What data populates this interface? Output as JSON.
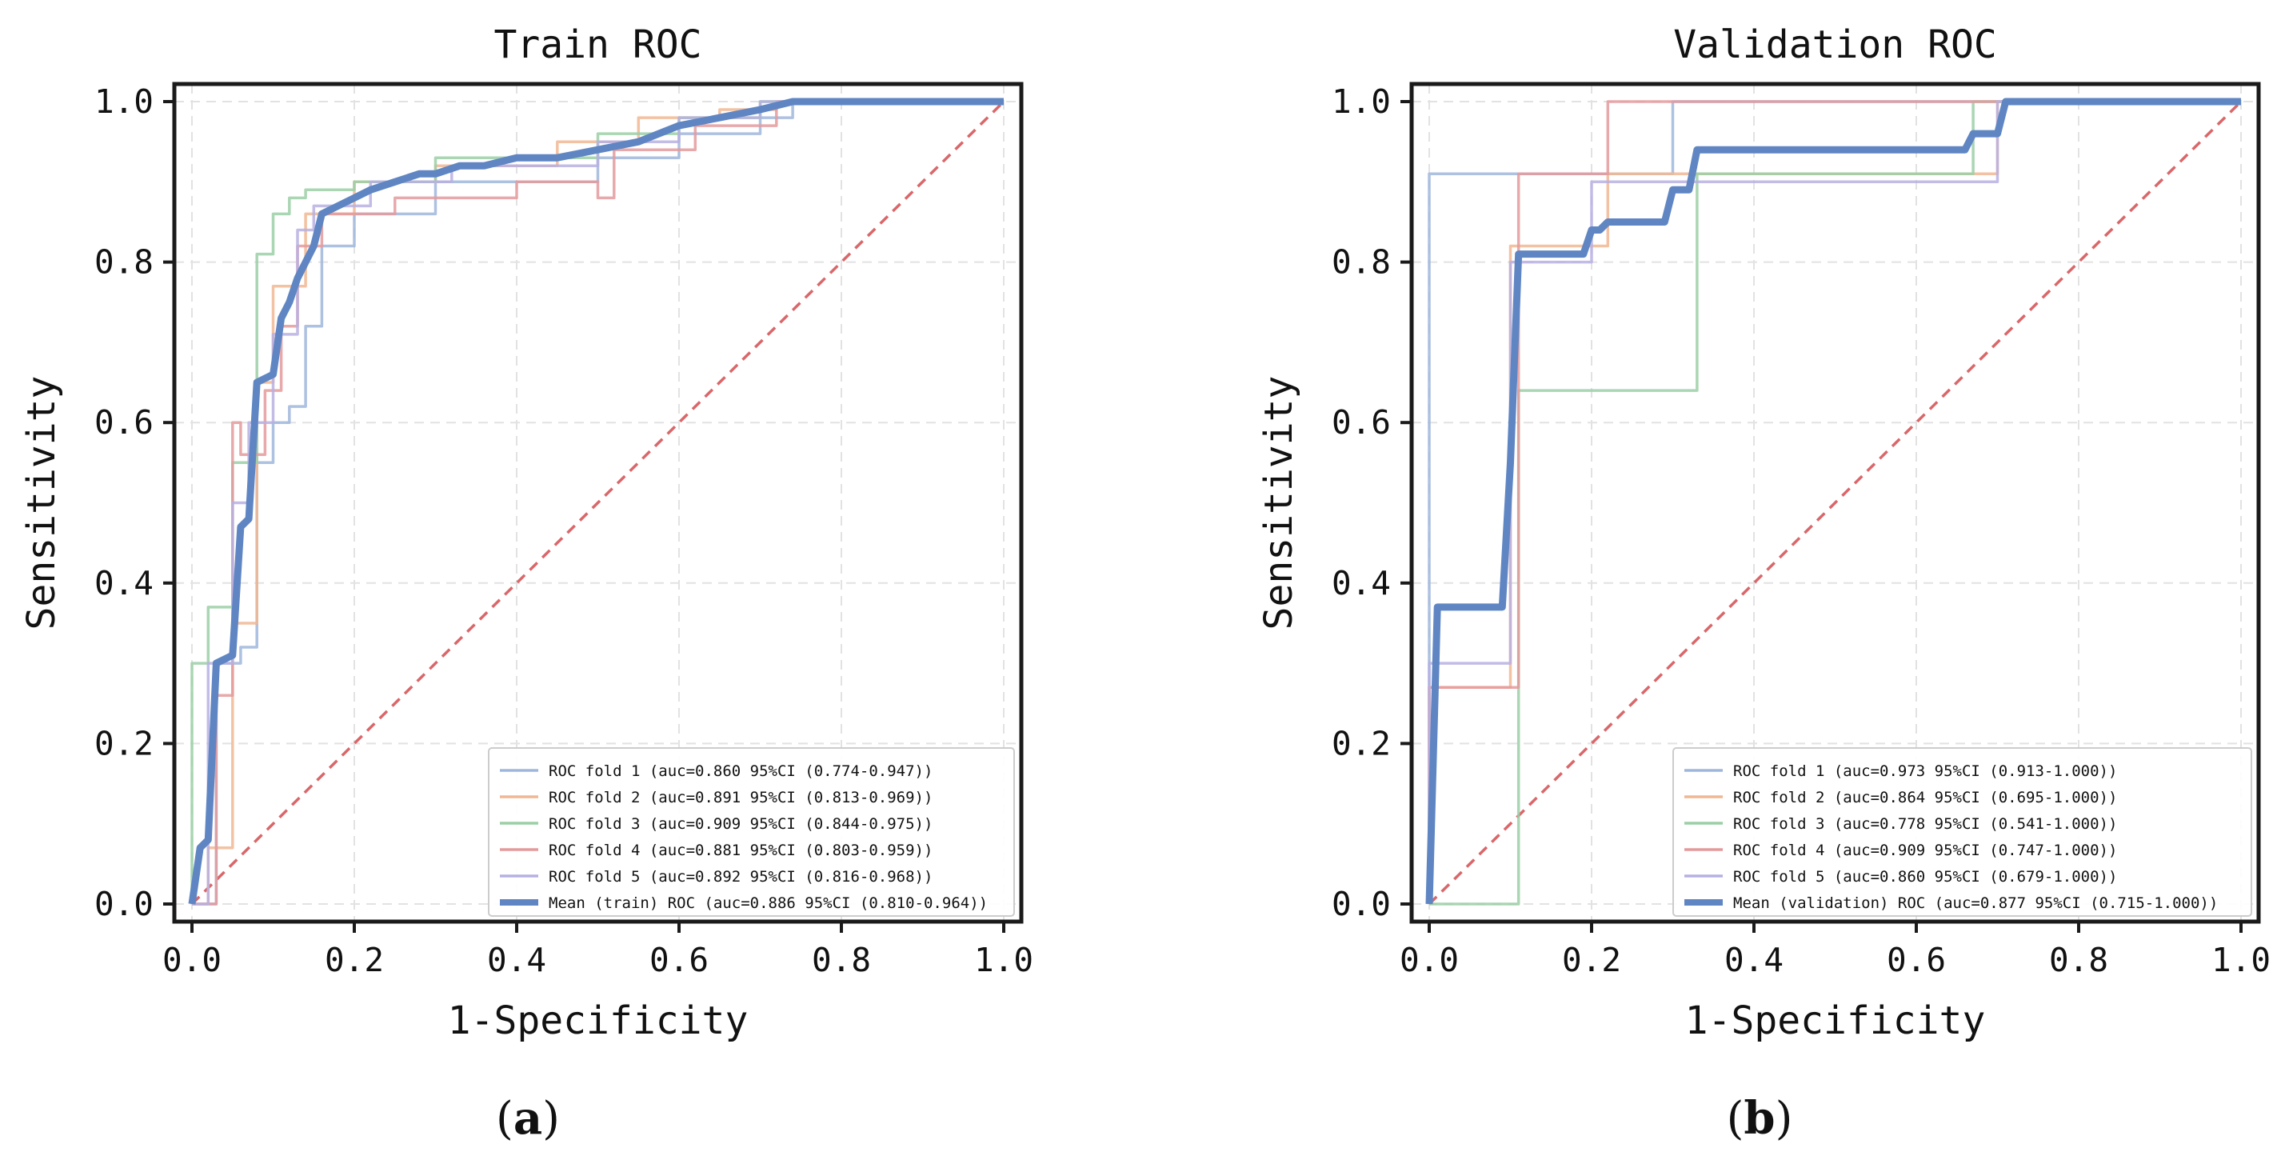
{
  "chart_data": [
    {
      "type": "line",
      "title": "Train ROC",
      "xlabel": "1-Specificity",
      "ylabel": "Sensitivity",
      "panel_label_open": "(",
      "panel_label_letter": "a",
      "panel_label_close": ")",
      "xlim": [
        0,
        1
      ],
      "ylim": [
        0,
        1
      ],
      "xticks": [
        "0.0",
        "0.2",
        "0.4",
        "0.6",
        "0.8",
        "1.0"
      ],
      "yticks": [
        "0.0",
        "0.2",
        "0.4",
        "0.6",
        "0.8",
        "1.0"
      ],
      "grid": true,
      "legend_position": "lower-right",
      "diagonal_color": "#d9676a",
      "series": [
        {
          "name": "ROC fold    1 (auc=0.860 95%CI (0.774-0.947))",
          "color": "#9fb6dc",
          "x": [
            0,
            0.03,
            0.03,
            0.06,
            0.06,
            0.08,
            0.08,
            0.1,
            0.1,
            0.12,
            0.12,
            0.14,
            0.14,
            0.16,
            0.16,
            0.2,
            0.2,
            0.3,
            0.3,
            0.5,
            0.5,
            0.6,
            0.6,
            0.7,
            0.7,
            0.74,
            0.74,
            1
          ],
          "y": [
            0,
            0,
            0.3,
            0.3,
            0.32,
            0.32,
            0.55,
            0.55,
            0.6,
            0.6,
            0.62,
            0.62,
            0.72,
            0.72,
            0.82,
            0.82,
            0.86,
            0.86,
            0.9,
            0.9,
            0.93,
            0.93,
            0.96,
            0.96,
            0.98,
            0.98,
            1,
            1
          ]
        },
        {
          "name": "ROC fold    2 (auc=0.891 95%CI (0.813-0.969))",
          "color": "#f1b793",
          "x": [
            0,
            0.02,
            0.02,
            0.05,
            0.05,
            0.08,
            0.08,
            0.1,
            0.1,
            0.14,
            0.14,
            0.2,
            0.2,
            0.3,
            0.3,
            0.45,
            0.45,
            0.55,
            0.55,
            0.65,
            0.65,
            0.72,
            0.72,
            1
          ],
          "y": [
            0,
            0,
            0.07,
            0.07,
            0.35,
            0.35,
            0.65,
            0.65,
            0.77,
            0.77,
            0.86,
            0.86,
            0.9,
            0.9,
            0.92,
            0.92,
            0.95,
            0.95,
            0.98,
            0.98,
            0.99,
            0.99,
            1,
            1
          ]
        },
        {
          "name": "ROC fold    3 (auc=0.909 95%CI (0.844-0.975))",
          "color": "#9bcfa6",
          "x": [
            0,
            0.0,
            0.02,
            0.02,
            0.05,
            0.05,
            0.08,
            0.08,
            0.1,
            0.1,
            0.12,
            0.12,
            0.14,
            0.14,
            0.2,
            0.2,
            0.3,
            0.3,
            0.5,
            0.5,
            0.6,
            0.6,
            0.7,
            0.7,
            1
          ],
          "y": [
            0,
            0.3,
            0.3,
            0.37,
            0.37,
            0.55,
            0.55,
            0.81,
            0.81,
            0.86,
            0.86,
            0.88,
            0.88,
            0.89,
            0.89,
            0.9,
            0.9,
            0.93,
            0.93,
            0.96,
            0.96,
            0.98,
            0.98,
            1,
            1
          ]
        },
        {
          "name": "ROC fold    4 (auc=0.881 95%CI (0.803-0.959))",
          "color": "#e49a9c",
          "x": [
            0,
            0.03,
            0.03,
            0.05,
            0.05,
            0.06,
            0.06,
            0.09,
            0.09,
            0.11,
            0.11,
            0.13,
            0.13,
            0.16,
            0.16,
            0.25,
            0.25,
            0.4,
            0.4,
            0.5,
            0.5,
            0.52,
            0.52,
            0.62,
            0.62,
            0.72,
            0.72,
            1
          ],
          "y": [
            0,
            0,
            0.26,
            0.26,
            0.6,
            0.6,
            0.56,
            0.56,
            0.64,
            0.64,
            0.72,
            0.72,
            0.82,
            0.82,
            0.86,
            0.86,
            0.88,
            0.88,
            0.9,
            0.9,
            0.88,
            0.88,
            0.94,
            0.94,
            0.97,
            0.97,
            1,
            1
          ]
        },
        {
          "name": "ROC fold    5 (auc=0.892 95%CI (0.816-0.968))",
          "color": "#b7b0e2",
          "x": [
            0,
            0.02,
            0.02,
            0.05,
            0.05,
            0.07,
            0.07,
            0.1,
            0.1,
            0.13,
            0.13,
            0.15,
            0.15,
            0.22,
            0.22,
            0.32,
            0.32,
            0.5,
            0.5,
            0.6,
            0.6,
            0.7,
            0.7,
            1
          ],
          "y": [
            0,
            0,
            0.3,
            0.3,
            0.5,
            0.5,
            0.6,
            0.6,
            0.71,
            0.71,
            0.84,
            0.84,
            0.87,
            0.87,
            0.9,
            0.9,
            0.92,
            0.92,
            0.95,
            0.95,
            0.98,
            0.98,
            1,
            1
          ]
        },
        {
          "name": "Mean (train) ROC (auc=0.886 95%CI (0.810-0.964))",
          "color": "#5f86c3",
          "mean": true,
          "x": [
            0,
            0.01,
            0.02,
            0.03,
            0.05,
            0.06,
            0.07,
            0.08,
            0.1,
            0.11,
            0.12,
            0.13,
            0.15,
            0.16,
            0.18,
            0.2,
            0.22,
            0.25,
            0.28,
            0.3,
            0.33,
            0.36,
            0.4,
            0.45,
            0.5,
            0.55,
            0.6,
            0.65,
            0.7,
            0.74,
            0.8,
            0.9,
            1.0
          ],
          "y": [
            0,
            0.07,
            0.08,
            0.3,
            0.31,
            0.47,
            0.48,
            0.65,
            0.66,
            0.73,
            0.75,
            0.78,
            0.82,
            0.86,
            0.87,
            0.88,
            0.89,
            0.9,
            0.91,
            0.91,
            0.92,
            0.92,
            0.93,
            0.93,
            0.94,
            0.95,
            0.97,
            0.98,
            0.99,
            1.0,
            1.0,
            1.0,
            1.0
          ]
        }
      ]
    },
    {
      "type": "line",
      "title": "Validation ROC",
      "xlabel": "1-Specificity",
      "ylabel": "Sensitivity",
      "panel_label_open": "(",
      "panel_label_letter": "b",
      "panel_label_close": ")",
      "xlim": [
        0,
        1
      ],
      "ylim": [
        0,
        1
      ],
      "xticks": [
        "0.0",
        "0.2",
        "0.4",
        "0.6",
        "0.8",
        "1.0"
      ],
      "yticks": [
        "0.0",
        "0.2",
        "0.4",
        "0.6",
        "0.8",
        "1.0"
      ],
      "grid": true,
      "legend_position": "lower-right",
      "diagonal_color": "#d9676a",
      "series": [
        {
          "name": "ROC fold    1 (auc=0.973 95%CI (0.913-1.000))",
          "color": "#9fb6dc",
          "x": [
            0,
            0,
            0.3,
            0.3,
            1
          ],
          "y": [
            0,
            0.91,
            0.91,
            1,
            1
          ]
        },
        {
          "name": "ROC fold    2 (auc=0.864 95%CI (0.695-1.000))",
          "color": "#f1b793",
          "x": [
            0,
            0,
            0.1,
            0.1,
            0.22,
            0.22,
            0.7,
            0.7,
            1
          ],
          "y": [
            0,
            0.27,
            0.27,
            0.82,
            0.82,
            0.91,
            0.91,
            1,
            1
          ]
        },
        {
          "name": "ROC fold    3 (auc=0.778 95%CI (0.541-1.000))",
          "color": "#9bcfa6",
          "x": [
            0,
            0.11,
            0.11,
            0.33,
            0.33,
            0.67,
            0.67,
            1
          ],
          "y": [
            0,
            0,
            0.64,
            0.64,
            0.91,
            0.91,
            1,
            1
          ]
        },
        {
          "name": "ROC fold    4 (auc=0.909 95%CI (0.747-1.000))",
          "color": "#e49a9c",
          "x": [
            0,
            0,
            0.11,
            0.11,
            0.22,
            0.22,
            1
          ],
          "y": [
            0,
            0.27,
            0.27,
            0.91,
            0.91,
            1,
            1
          ]
        },
        {
          "name": "ROC fold    5 (auc=0.860 95%CI (0.679-1.000))",
          "color": "#b7b0e2",
          "x": [
            0,
            0,
            0.1,
            0.1,
            0.2,
            0.2,
            0.7,
            0.7,
            1
          ],
          "y": [
            0,
            0.3,
            0.3,
            0.8,
            0.8,
            0.9,
            0.9,
            1,
            1
          ]
        },
        {
          "name": "Mean (validation) ROC (auc=0.877 95%CI (0.715-1.000))",
          "color": "#5f86c3",
          "mean": true,
          "x": [
            0,
            0.01,
            0.09,
            0.1,
            0.11,
            0.19,
            0.2,
            0.21,
            0.22,
            0.29,
            0.3,
            0.32,
            0.33,
            0.5,
            0.6,
            0.66,
            0.67,
            0.7,
            0.71,
            0.8,
            1.0
          ],
          "y": [
            0,
            0.37,
            0.37,
            0.55,
            0.81,
            0.81,
            0.84,
            0.84,
            0.85,
            0.85,
            0.89,
            0.89,
            0.94,
            0.94,
            0.94,
            0.94,
            0.96,
            0.96,
            1.0,
            1.0,
            1.0
          ]
        }
      ]
    }
  ]
}
